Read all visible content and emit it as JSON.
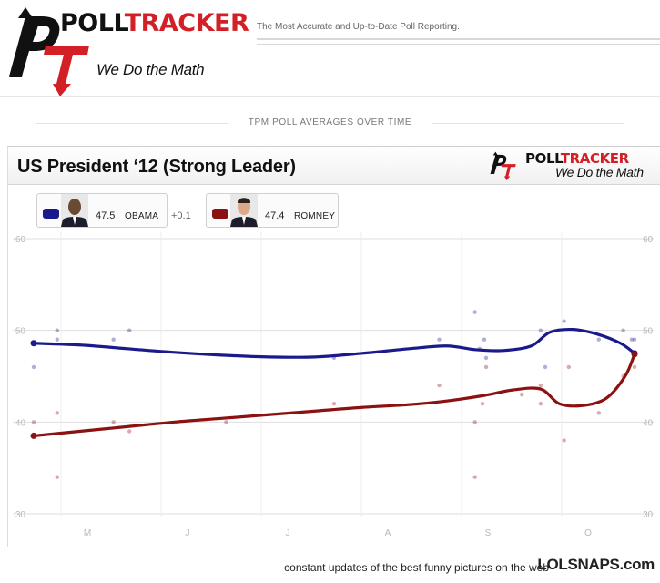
{
  "header": {
    "brand_poll": "POLL",
    "brand_tracker": "TRACKER",
    "tagline": "The Most Accurate and Up-to-Date Poll Reporting.",
    "slogan": "We Do the Math",
    "section_title": "TPM POLL AVERAGES OVER TIME"
  },
  "panel": {
    "title": "US President ‘12 (Strong Leader)",
    "mini_brand_poll": "POLL",
    "mini_brand_tracker": "TRACKER",
    "mini_slogan": "We Do the Math"
  },
  "legend": {
    "obama": {
      "value": "47.5",
      "name": "OBAMA",
      "diff": "+0.1",
      "color": "#1a1a8c"
    },
    "romney": {
      "value": "47.4",
      "name": "ROMNEY",
      "color": "#8c1111"
    }
  },
  "footer": {
    "text": "constant updates of the best funny pictures on the web",
    "site": "LOLSNAPS.com"
  },
  "colors": {
    "brand_red": "#d31f26",
    "obama": "#1a1a8c",
    "romney": "#8c1111"
  },
  "chart_data": {
    "type": "line",
    "title": "US President ‘12 (Strong Leader)",
    "xlabel": "",
    "ylabel": "",
    "x_ticks": [
      "M",
      "J",
      "J",
      "A",
      "S",
      "O"
    ],
    "y_ticks": [
      30,
      40,
      50,
      60
    ],
    "ylim": [
      30,
      60
    ],
    "xlim": [
      0,
      640
    ],
    "grid": true,
    "series": [
      {
        "name": "OBAMA",
        "color": "#1a1a8c",
        "line": [
          [
            0,
            48.6
          ],
          [
            50,
            48.4
          ],
          [
            100,
            48.0
          ],
          [
            150,
            47.6
          ],
          [
            200,
            47.3
          ],
          [
            250,
            47.1
          ],
          [
            300,
            47.1
          ],
          [
            350,
            47.5
          ],
          [
            400,
            48.0
          ],
          [
            440,
            48.3
          ],
          [
            470,
            47.9
          ],
          [
            500,
            47.8
          ],
          [
            530,
            48.3
          ],
          [
            550,
            49.8
          ],
          [
            575,
            50.1
          ],
          [
            600,
            49.6
          ],
          [
            625,
            48.6
          ],
          [
            640,
            47.5
          ]
        ],
        "points": [
          [
            0,
            46.0
          ],
          [
            25,
            50.0
          ],
          [
            25,
            49.0
          ],
          [
            85,
            49.0
          ],
          [
            102,
            50.0
          ],
          [
            320,
            47.0
          ],
          [
            432,
            49.0
          ],
          [
            470,
            52.0
          ],
          [
            475,
            48.0
          ],
          [
            480,
            49.0
          ],
          [
            482,
            47.0
          ],
          [
            540,
            50.0
          ],
          [
            545,
            46.0
          ],
          [
            565,
            51.0
          ],
          [
            602,
            49.0
          ],
          [
            628,
            50.0
          ],
          [
            637,
            49.0
          ],
          [
            640,
            49.0
          ]
        ]
      },
      {
        "name": "ROMNEY",
        "color": "#8c1111",
        "line": [
          [
            0,
            38.5
          ],
          [
            50,
            39.0
          ],
          [
            100,
            39.5
          ],
          [
            150,
            40.0
          ],
          [
            200,
            40.4
          ],
          [
            250,
            40.8
          ],
          [
            300,
            41.2
          ],
          [
            350,
            41.6
          ],
          [
            400,
            41.9
          ],
          [
            440,
            42.3
          ],
          [
            480,
            42.9
          ],
          [
            510,
            43.5
          ],
          [
            540,
            43.6
          ],
          [
            560,
            42.0
          ],
          [
            585,
            41.8
          ],
          [
            610,
            42.6
          ],
          [
            630,
            45.0
          ],
          [
            640,
            47.4
          ]
        ],
        "points": [
          [
            0,
            40.0
          ],
          [
            25,
            41.0
          ],
          [
            25,
            34.0
          ],
          [
            85,
            40.0
          ],
          [
            102,
            39.0
          ],
          [
            205,
            40.0
          ],
          [
            320,
            42.0
          ],
          [
            432,
            44.0
          ],
          [
            470,
            40.0
          ],
          [
            470,
            34.0
          ],
          [
            478,
            42.0
          ],
          [
            482,
            46.0
          ],
          [
            520,
            43.0
          ],
          [
            540,
            44.0
          ],
          [
            540,
            42.0
          ],
          [
            565,
            38.0
          ],
          [
            570,
            46.0
          ],
          [
            602,
            41.0
          ],
          [
            628,
            45.0
          ],
          [
            640,
            46.0
          ]
        ]
      }
    ]
  }
}
